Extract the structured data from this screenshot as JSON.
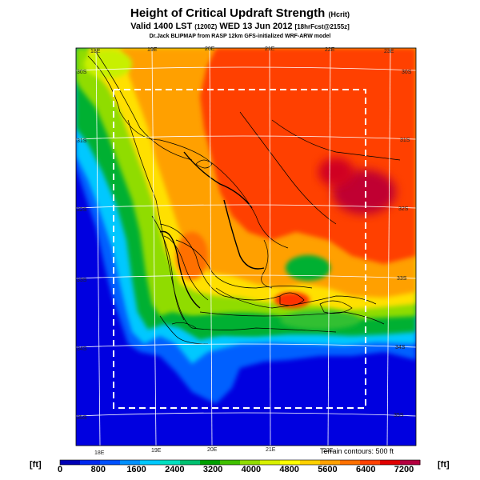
{
  "title": {
    "main": "Height of Critical Updraft Strength",
    "unit": "(Hcrit)"
  },
  "subtitle": {
    "valid_prefix": "Valid 1400 LST",
    "valid_code": "(1200Z)",
    "valid_date": "WED 13 Jun 2012",
    "forecast": "[18hrFcst@2155z]",
    "credit": "Dr.Jack BLIPMAP from RASP 12km GFS-initialized WRF-ARW model"
  },
  "grid_labels": {
    "top_lon": [
      "18E",
      "19E",
      "20E",
      "21E",
      "22E",
      "23E"
    ],
    "bottom_lon": [
      "18E",
      "19E",
      "20E",
      "21E",
      "22E"
    ],
    "left_lat": [
      "30S",
      "31S",
      "32S",
      "33S",
      "34S",
      "35S"
    ],
    "right_lat": [
      "30S",
      "31S",
      "32S",
      "33S",
      "34S",
      "35S"
    ]
  },
  "terrain_note": "Terrain contours: 500 ft",
  "colorbar": {
    "unit_left": "[ft]",
    "unit_right": "[ft]",
    "tick_labels": [
      "0",
      "800",
      "1600",
      "2400",
      "3200",
      "4000",
      "4800",
      "5600",
      "6400",
      "7200"
    ],
    "colors": [
      "#0000b4",
      "#0028f0",
      "#0050ff",
      "#0090ff",
      "#00c8ff",
      "#00e0c0",
      "#00c070",
      "#00a000",
      "#40c000",
      "#90dc00",
      "#d8f000",
      "#ffff00",
      "#ffd000",
      "#ffa000",
      "#ff7000",
      "#ff4000",
      "#e00000",
      "#b40040"
    ]
  },
  "map_colors": {
    "sea": "#0000e0",
    "coast_blue": "#0070ff",
    "cyan": "#00c8ff",
    "green": "#00b030",
    "lightgreen": "#90dc00",
    "yellow": "#ffe000",
    "orange": "#ffa000",
    "red": "#ff3000",
    "darkred": "#c00030"
  }
}
